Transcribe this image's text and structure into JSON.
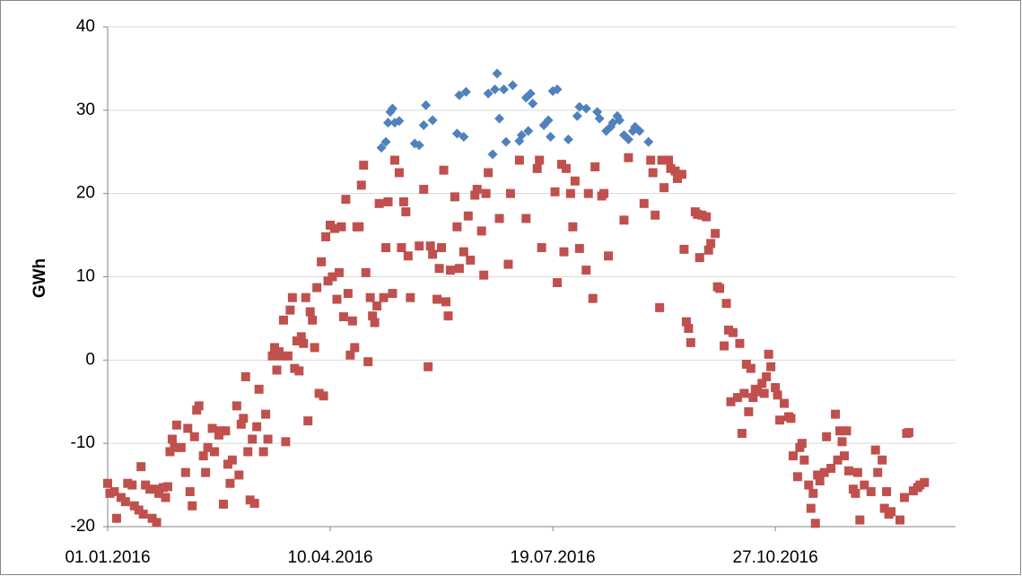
{
  "chart_data": {
    "type": "scatter",
    "y_label": "GWh",
    "xlim": [
      0,
      381
    ],
    "xticks": [
      {
        "value": 0,
        "label": "01.01.2016"
      },
      {
        "value": 100,
        "label": "10.04.2016"
      },
      {
        "value": 200,
        "label": "19.07.2016"
      },
      {
        "value": 300,
        "label": "27.10.2016"
      }
    ],
    "ylim": [
      -20,
      40
    ],
    "yticks": [
      -20,
      -10,
      0,
      10,
      20,
      30,
      40
    ],
    "grid": true,
    "series": [
      {
        "color": "#c0504d",
        "marker": "square",
        "x": [
          0,
          1,
          3,
          4,
          6,
          8,
          9,
          11,
          12,
          14,
          15,
          16,
          17,
          19,
          20,
          21,
          22,
          23,
          25,
          26,
          27,
          28,
          29,
          30,
          31,
          33,
          35,
          36,
          37,
          38,
          39,
          40,
          41,
          43,
          44,
          45,
          47,
          48,
          50,
          51,
          52,
          53,
          54,
          55,
          56,
          58,
          59,
          60,
          61,
          62,
          63,
          64,
          65,
          66,
          67,
          68,
          70,
          71,
          72,
          74,
          75,
          76,
          77,
          78,
          79,
          80,
          81,
          82,
          83,
          84,
          85,
          86,
          87,
          88,
          89,
          90,
          91,
          92,
          93,
          94,
          95,
          96,
          97,
          98,
          99,
          100,
          101,
          102,
          103,
          104,
          105,
          106,
          107,
          108,
          109,
          110,
          111,
          112,
          113,
          114,
          115,
          116,
          117,
          118,
          119,
          120,
          121,
          122,
          124,
          125,
          126,
          128,
          129,
          131,
          132,
          133,
          134,
          135,
          136,
          140,
          142,
          144,
          145,
          146,
          148,
          149,
          150,
          151,
          152,
          153,
          154,
          156,
          157,
          158,
          160,
          162,
          163,
          165,
          166,
          168,
          169,
          170,
          171,
          176,
          180,
          181,
          185,
          188,
          193,
          194,
          195,
          201,
          202,
          204,
          205,
          206,
          208,
          209,
          210,
          212,
          215,
          216,
          218,
          219,
          222,
          223,
          225,
          232,
          234,
          241,
          244,
          245,
          246,
          248,
          249,
          250,
          252,
          253,
          255,
          256,
          258,
          259,
          260,
          261,
          262,
          264,
          265,
          266,
          267,
          269,
          270,
          271,
          273,
          274,
          275,
          277,
          278,
          279,
          280,
          281,
          283,
          284,
          285,
          286,
          287,
          288,
          289,
          290,
          291,
          292,
          294,
          295,
          296,
          297,
          298,
          300,
          301,
          302,
          304,
          306,
          307,
          308,
          310,
          311,
          312,
          313,
          315,
          316,
          317,
          318,
          319,
          320,
          322,
          323,
          325,
          327,
          328,
          329,
          330,
          331,
          332,
          333,
          335,
          336,
          337,
          338,
          340,
          343,
          345,
          346,
          348,
          349,
          350,
          351,
          352,
          356,
          358,
          359,
          360,
          362,
          364,
          365,
          367
        ],
        "values": [
          -14.8,
          -16,
          -15.8,
          -19,
          -16.5,
          -17,
          -14.8,
          -15,
          -17.5,
          -18,
          -12.8,
          -18.5,
          -15,
          -15.5,
          -19,
          -15.5,
          -19.5,
          -16,
          -15.3,
          -16.5,
          -15.2,
          -11,
          -9.5,
          -10.5,
          -7.8,
          -10.5,
          -13.5,
          -8.2,
          -15.8,
          -17.5,
          -9.2,
          -6,
          -5.5,
          -11.5,
          -13.5,
          -10.5,
          -8.2,
          -11,
          -9,
          -8.5,
          -17.3,
          -8.5,
          -12.5,
          -14.8,
          -12,
          -5.5,
          -13.8,
          -7.7,
          -7,
          -2,
          -11,
          -16.8,
          -9.5,
          -17.2,
          -8,
          -3.5,
          -11,
          -6.5,
          -9.5,
          0.5,
          1.5,
          -1.2,
          1,
          0.5,
          4.8,
          -9.8,
          0.5,
          6,
          7.5,
          -1,
          2.3,
          -1.3,
          2.8,
          2,
          7.5,
          -7.3,
          5.8,
          4.8,
          1.5,
          8.7,
          -4,
          11.8,
          -4.3,
          14.8,
          9.5,
          16.2,
          10,
          15.8,
          7.3,
          10.5,
          16,
          5.2,
          19.3,
          8,
          0.6,
          4.7,
          1.5,
          16,
          16,
          21,
          23.4,
          10.5,
          -0.2,
          7.5,
          5.3,
          4.5,
          6.5,
          18.8,
          7.5,
          13.5,
          19,
          8,
          24,
          22.5,
          13.5,
          19,
          17.8,
          12.5,
          7.5,
          13.7,
          20.5,
          -0.8,
          13.7,
          12.7,
          7.3,
          11,
          13.5,
          22.8,
          7,
          5.3,
          10.8,
          19.6,
          16,
          11,
          13,
          17.3,
          12,
          19.8,
          20.5,
          15.5,
          10.2,
          20,
          22.5,
          17,
          11.5,
          20,
          24,
          17,
          23,
          24,
          13.5,
          20.2,
          9.3,
          23.5,
          13,
          23,
          20,
          16,
          21.5,
          13.4,
          10.8,
          20,
          7.4,
          23.2,
          19.7,
          20,
          12.5,
          16.8,
          24.3,
          18.8,
          24,
          22.5,
          17.4,
          6.3,
          24,
          20.7,
          24,
          23,
          22.7,
          21.8,
          22.3,
          13.3,
          4.6,
          3.8,
          2.1,
          17.8,
          17.5,
          12.3,
          17.4,
          17.2,
          13.2,
          14,
          15.2,
          8.8,
          8.6,
          1.7,
          6.8,
          3.6,
          -5,
          3.3,
          -4.5,
          2,
          -8.8,
          -4,
          -0.5,
          -6.2,
          -1,
          -4.5,
          -3.5,
          -3.8,
          -2.8,
          -4,
          -2,
          0.7,
          -0.8,
          -3.3,
          -4.2,
          -7.2,
          -5.2,
          -6.8,
          -7,
          -11.5,
          -14,
          -10.5,
          -10,
          -12,
          -15,
          -17.8,
          -16,
          -19.6,
          -13.8,
          -14.5,
          -13.5,
          -9.2,
          -13,
          -6.5,
          -12,
          -8.5,
          -9.8,
          -11.5,
          -8.5,
          -13.3,
          -15.5,
          -16,
          -13.5,
          -19.2,
          -15,
          -15.8,
          -10.8,
          -13.5,
          -12,
          -17.8,
          -15.8,
          -18.5,
          -18.2,
          -19.2,
          -16.5,
          -8.8,
          -8.7,
          -15.7,
          -15.3,
          -15,
          -14.7
        ]
      },
      {
        "color": "#4f81bd",
        "marker": "diamond",
        "x": [
          123,
          125,
          126,
          127,
          128,
          129,
          131,
          138,
          140,
          142,
          143,
          146,
          157,
          158,
          160,
          161,
          171,
          173,
          174,
          175,
          176,
          178,
          179,
          182,
          185,
          186,
          188,
          189,
          190,
          191,
          196,
          198,
          199,
          200,
          202,
          207,
          211,
          212,
          215,
          220,
          221,
          224,
          226,
          227,
          229,
          230,
          232,
          234,
          236,
          237,
          239,
          243
        ],
        "values": [
          25.5,
          26.2,
          28.5,
          29.8,
          30.2,
          28.5,
          28.7,
          26,
          25.8,
          28.2,
          30.6,
          28.8,
          27.2,
          31.8,
          26.8,
          32.2,
          32,
          24.7,
          32.5,
          34.4,
          29,
          32.5,
          26.2,
          33,
          26.3,
          27,
          31.5,
          27.5,
          32,
          30.8,
          28.2,
          28.8,
          26.8,
          32.3,
          32.5,
          26.5,
          29.3,
          30.4,
          30.2,
          29.8,
          29,
          27.5,
          28,
          28.5,
          29.3,
          28.8,
          27,
          26.5,
          27.5,
          28,
          27.5,
          26.2
        ]
      }
    ]
  }
}
